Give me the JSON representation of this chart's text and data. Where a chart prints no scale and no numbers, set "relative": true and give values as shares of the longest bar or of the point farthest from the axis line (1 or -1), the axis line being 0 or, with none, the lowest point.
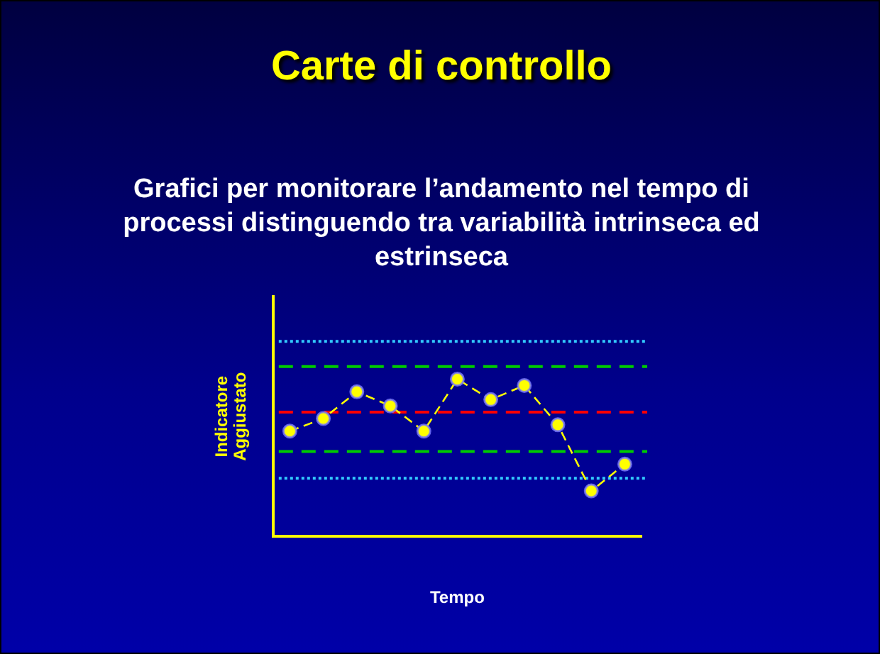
{
  "chart_data": {
    "type": "line",
    "title": "Carte di controllo",
    "subtitle": "Grafici per monitorare l’andamento nel tempo di processi distinguendo tra variabilità intrinseca ed estrinseca",
    "xlabel": "Tempo",
    "ylabel": "Indicatore Aggiustato",
    "relative": true,
    "marker": "circle",
    "categories": [
      null,
      null,
      null,
      null,
      null,
      null,
      null,
      null,
      null,
      null,
      null
    ],
    "series": [
      {
        "color": "#ffff00",
        "line_style": "dashed",
        "values": [
          0.67,
          0.75,
          0.92,
          0.83,
          0.67,
          1,
          0.87,
          0.96,
          0.71,
          0.29,
          0.46
        ]
      }
    ],
    "ref_lines": [
      {
        "axis": "y",
        "value": 1.24,
        "color": "#33ccff",
        "line_style": "dotted"
      },
      {
        "axis": "y",
        "value": 1.08,
        "color": "#00cc00",
        "line_style": "dashed"
      },
      {
        "axis": "y",
        "value": 0.79,
        "color": "#ff0000",
        "line_style": "dashed"
      },
      {
        "axis": "y",
        "value": 0.54,
        "color": "#00cc00",
        "line_style": "dashed"
      },
      {
        "axis": "y",
        "value": 0.37,
        "color": "#33ccff",
        "line_style": "dotted"
      }
    ]
  }
}
